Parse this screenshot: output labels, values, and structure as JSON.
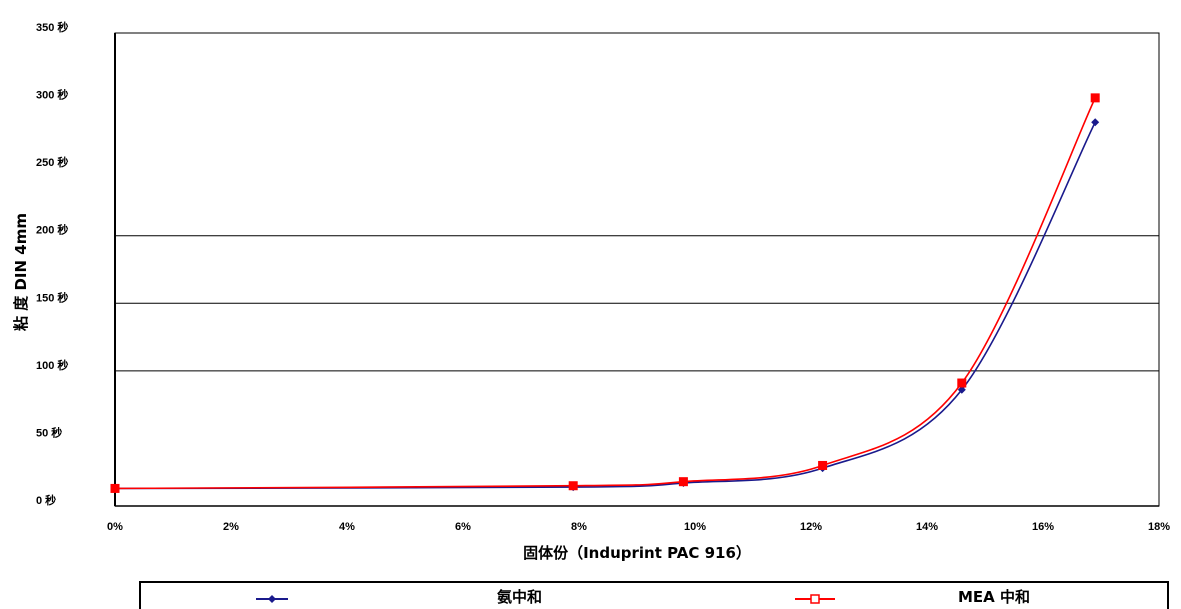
{
  "chart_data": {
    "type": "line",
    "title": "",
    "xlabel": "固体份（Induprint PAC 916）",
    "ylabel": "粘 度 DIN 4mm",
    "x_ticks": [
      "0%",
      "2%",
      "4%",
      "6%",
      "8%",
      "10%",
      "12%",
      "14%",
      "16%",
      "18%"
    ],
    "y_ticks": [
      "0 秒",
      "50 秒",
      "100 秒",
      "150 秒",
      "200 秒",
      "250 秒",
      "300 秒",
      "350 秒"
    ],
    "xlim": [
      0,
      18
    ],
    "ylim": [
      0,
      350
    ],
    "y_gridlines": [
      100,
      150,
      200
    ],
    "legend_position": "bottom",
    "series": [
      {
        "name": "氨中和",
        "color": "#1a1a8c",
        "marker": "diamond",
        "x": [
          0,
          7.9,
          9.8,
          12.2,
          14.6,
          16.9
        ],
        "y": [
          13,
          14,
          17,
          28,
          86,
          284
        ]
      },
      {
        "name": "MEA 中和",
        "color": "#ff0000",
        "marker": "square",
        "x": [
          0,
          7.9,
          9.8,
          12.2,
          14.6,
          16.9
        ],
        "y": [
          13,
          15,
          18,
          30,
          91,
          302
        ]
      }
    ]
  }
}
